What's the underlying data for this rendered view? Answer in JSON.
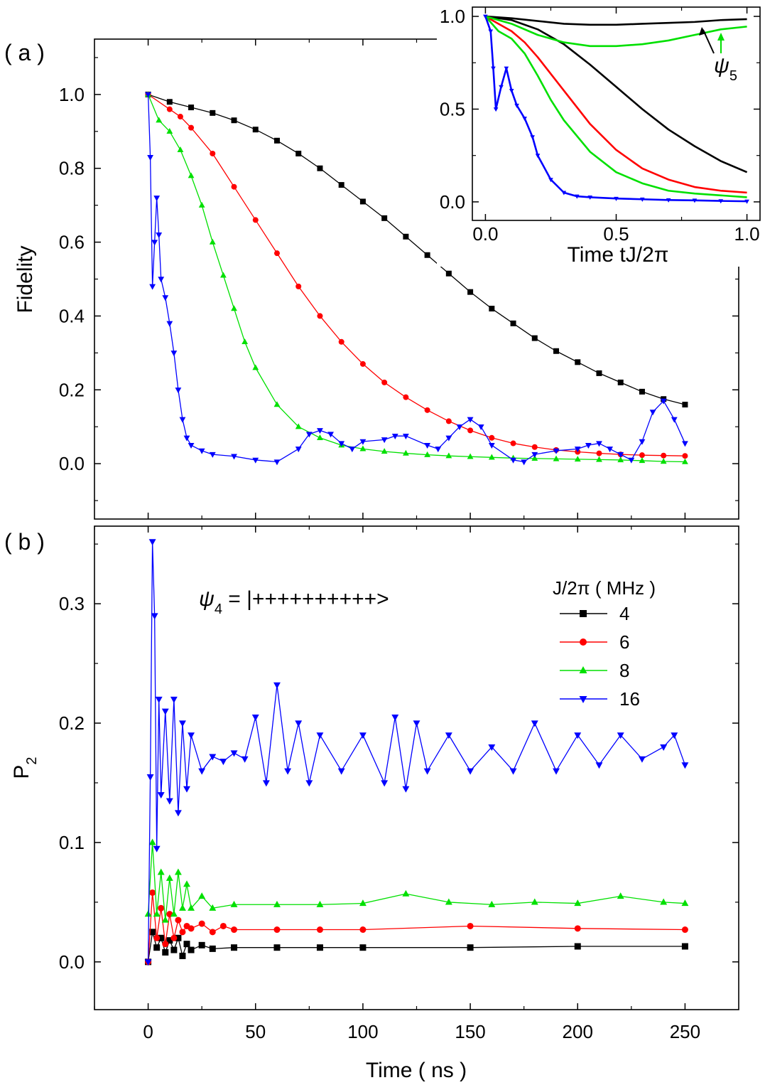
{
  "chart_data": [
    {
      "id": "a",
      "panel_label": "( a )",
      "type": "line",
      "xlabel": "",
      "ylabel": "Fidelity",
      "xlim": [
        -25,
        275
      ],
      "ylim": [
        -0.15,
        1.15
      ],
      "yticks": [
        "0.0",
        "0.2",
        "0.4",
        "0.6",
        "0.8",
        "1.0"
      ],
      "series": [
        {
          "name": "4",
          "color": "#000000",
          "marker": "square",
          "x": [
            0,
            10,
            20,
            30,
            40,
            50,
            60,
            70,
            80,
            90,
            100,
            110,
            120,
            130,
            140,
            150,
            160,
            170,
            180,
            190,
            200,
            210,
            220,
            230,
            240,
            250
          ],
          "values": [
            1.0,
            0.98,
            0.965,
            0.95,
            0.93,
            0.905,
            0.875,
            0.84,
            0.8,
            0.755,
            0.71,
            0.665,
            0.615,
            0.565,
            0.515,
            0.465,
            0.42,
            0.38,
            0.34,
            0.305,
            0.275,
            0.245,
            0.22,
            0.195,
            0.175,
            0.16
          ]
        },
        {
          "name": "6",
          "color": "#ff0000",
          "marker": "circle",
          "x": [
            0,
            10,
            15,
            20,
            30,
            40,
            50,
            60,
            70,
            80,
            90,
            100,
            110,
            120,
            130,
            140,
            150,
            160,
            170,
            180,
            190,
            200,
            210,
            220,
            230,
            240,
            250
          ],
          "values": [
            1.0,
            0.96,
            0.94,
            0.91,
            0.84,
            0.75,
            0.66,
            0.57,
            0.48,
            0.4,
            0.33,
            0.27,
            0.22,
            0.18,
            0.145,
            0.115,
            0.09,
            0.07,
            0.055,
            0.045,
            0.037,
            0.032,
            0.028,
            0.025,
            0.023,
            0.022,
            0.021
          ]
        },
        {
          "name": "8",
          "color": "#00e000",
          "marker": "triangle-up",
          "x": [
            0,
            5,
            10,
            15,
            20,
            25,
            30,
            35,
            40,
            45,
            50,
            60,
            70,
            80,
            90,
            100,
            110,
            120,
            130,
            140,
            150,
            160,
            170,
            180,
            190,
            200,
            210,
            220,
            230,
            240,
            250
          ],
          "values": [
            1.0,
            0.93,
            0.9,
            0.85,
            0.78,
            0.7,
            0.6,
            0.51,
            0.42,
            0.33,
            0.26,
            0.16,
            0.1,
            0.07,
            0.05,
            0.04,
            0.033,
            0.028,
            0.024,
            0.021,
            0.019,
            0.017,
            0.015,
            0.014,
            0.013,
            0.012,
            0.011,
            0.01,
            0.008,
            0.006,
            0.005
          ]
        },
        {
          "name": "16",
          "color": "#0000ff",
          "marker": "triangle-down",
          "x": [
            0,
            1,
            2,
            3,
            4,
            5,
            6,
            8,
            10,
            12,
            14,
            16,
            18,
            20,
            25,
            30,
            40,
            50,
            60,
            70,
            75,
            80,
            85,
            90,
            95,
            100,
            110,
            115,
            120,
            130,
            135,
            140,
            145,
            150,
            155,
            160,
            170,
            175,
            180,
            190,
            200,
            205,
            210,
            215,
            220,
            225,
            230,
            235,
            240,
            245,
            250
          ],
          "values": [
            1.0,
            0.83,
            0.48,
            0.6,
            0.72,
            0.62,
            0.5,
            0.45,
            0.38,
            0.3,
            0.2,
            0.12,
            0.07,
            0.05,
            0.035,
            0.025,
            0.02,
            0.01,
            0.005,
            0.04,
            0.08,
            0.09,
            0.08,
            0.055,
            0.04,
            0.06,
            0.065,
            0.075,
            0.075,
            0.05,
            0.04,
            0.07,
            0.1,
            0.12,
            0.1,
            0.05,
            0.01,
            0.005,
            0.025,
            0.035,
            0.04,
            0.05,
            0.055,
            0.04,
            0.025,
            0.01,
            0.06,
            0.14,
            0.17,
            0.12,
            0.055
          ]
        }
      ],
      "inset": {
        "xlabel": "Time tJ/2π",
        "xlim": [
          -0.05,
          1.05
        ],
        "ylim": [
          -0.1,
          1.05
        ],
        "xticks": [
          "0.0",
          "0.5",
          "1.0"
        ],
        "yticks": [
          "0.0",
          "0.5",
          "1.0"
        ],
        "annotation": "ψ",
        "annotation_sub": "5",
        "series": [
          {
            "name": "4",
            "color": "#000000",
            "x": [
              0,
              0.1,
              0.2,
              0.3,
              0.4,
              0.5,
              0.6,
              0.7,
              0.8,
              0.9,
              1.0
            ],
            "values": [
              1.0,
              0.98,
              0.93,
              0.85,
              0.74,
              0.62,
              0.5,
              0.39,
              0.3,
              0.22,
              0.16
            ]
          },
          {
            "name": "6",
            "color": "#ff0000",
            "x": [
              0,
              0.05,
              0.1,
              0.15,
              0.2,
              0.3,
              0.4,
              0.5,
              0.6,
              0.7,
              0.8,
              0.9,
              1.0
            ],
            "values": [
              1.0,
              0.96,
              0.92,
              0.86,
              0.78,
              0.6,
              0.42,
              0.28,
              0.18,
              0.12,
              0.08,
              0.06,
              0.05
            ]
          },
          {
            "name": "8",
            "color": "#00e000",
            "x": [
              0,
              0.05,
              0.1,
              0.15,
              0.2,
              0.25,
              0.3,
              0.4,
              0.5,
              0.6,
              0.7,
              0.8,
              0.9,
              1.0
            ],
            "values": [
              1.0,
              0.92,
              0.88,
              0.8,
              0.68,
              0.55,
              0.44,
              0.27,
              0.16,
              0.1,
              0.06,
              0.045,
              0.035,
              0.025
            ]
          },
          {
            "name": "16",
            "color": "#0000ff",
            "x": [
              0,
              0.02,
              0.03,
              0.04,
              0.06,
              0.08,
              0.1,
              0.12,
              0.15,
              0.18,
              0.2,
              0.25,
              0.3,
              0.35,
              0.4,
              0.5,
              0.6,
              0.7,
              0.8,
              0.9,
              1.0
            ],
            "values": [
              1.0,
              0.92,
              0.72,
              0.5,
              0.62,
              0.72,
              0.6,
              0.52,
              0.45,
              0.35,
              0.25,
              0.12,
              0.05,
              0.03,
              0.025,
              0.018,
              0.014,
              0.01,
              0.008,
              0.005,
              0.003
            ]
          },
          {
            "name": "4 (ψ₅)",
            "color": "#000000",
            "x": [
              0,
              0.1,
              0.2,
              0.3,
              0.4,
              0.5,
              0.6,
              0.7,
              0.8,
              0.9,
              1.0
            ],
            "values": [
              1.0,
              0.99,
              0.975,
              0.96,
              0.955,
              0.955,
              0.96,
              0.965,
              0.97,
              0.98,
              0.985
            ]
          },
          {
            "name": "8 (ψ₅)",
            "color": "#00e000",
            "x": [
              0,
              0.1,
              0.2,
              0.3,
              0.4,
              0.5,
              0.6,
              0.7,
              0.8,
              0.9,
              1.0
            ],
            "values": [
              1.0,
              0.96,
              0.9,
              0.86,
              0.84,
              0.84,
              0.85,
              0.87,
              0.9,
              0.93,
              0.945
            ]
          }
        ]
      }
    },
    {
      "id": "b",
      "panel_label": "( b )",
      "type": "line",
      "xlabel": "Time ( ns )",
      "ylabel": "P",
      "ylabel_sub": "2",
      "xlim": [
        -25,
        275
      ],
      "ylim": [
        -0.04,
        0.365
      ],
      "xticks": [
        "0",
        "50",
        "100",
        "150",
        "200",
        "250"
      ],
      "yticks": [
        "0.0",
        "0.1",
        "0.2",
        "0.3"
      ],
      "annotation": "ψ",
      "annotation_sub": "4",
      "annotation_rest": " = |++++++++++>",
      "legend_title": "J/2π ( MHz )",
      "series": [
        {
          "name": "4",
          "color": "#000000",
          "marker": "square",
          "x": [
            0,
            2,
            4,
            6,
            8,
            10,
            12,
            14,
            16,
            18,
            20,
            25,
            30,
            40,
            60,
            80,
            100,
            150,
            200,
            250
          ],
          "values": [
            0.0,
            0.025,
            0.012,
            0.02,
            0.008,
            0.018,
            0.01,
            0.02,
            0.005,
            0.015,
            0.01,
            0.014,
            0.011,
            0.012,
            0.012,
            0.012,
            0.012,
            0.012,
            0.013,
            0.013
          ]
        },
        {
          "name": "6",
          "color": "#ff0000",
          "marker": "circle",
          "x": [
            0,
            2,
            4,
            6,
            8,
            10,
            12,
            14,
            16,
            18,
            20,
            25,
            30,
            35,
            40,
            60,
            80,
            100,
            150,
            200,
            250
          ],
          "values": [
            0.0,
            0.058,
            0.02,
            0.045,
            0.015,
            0.04,
            0.02,
            0.035,
            0.025,
            0.03,
            0.028,
            0.032,
            0.025,
            0.03,
            0.027,
            0.027,
            0.027,
            0.027,
            0.03,
            0.028,
            0.027
          ]
        },
        {
          "name": "8",
          "color": "#00e000",
          "marker": "triangle-up",
          "x": [
            0,
            2,
            4,
            6,
            8,
            10,
            12,
            14,
            16,
            18,
            20,
            25,
            30,
            40,
            60,
            80,
            100,
            120,
            140,
            160,
            180,
            200,
            220,
            240,
            250
          ],
          "values": [
            0.04,
            0.1,
            0.04,
            0.075,
            0.035,
            0.07,
            0.04,
            0.075,
            0.045,
            0.065,
            0.045,
            0.055,
            0.045,
            0.048,
            0.048,
            0.048,
            0.049,
            0.057,
            0.05,
            0.048,
            0.05,
            0.049,
            0.055,
            0.05,
            0.049
          ]
        },
        {
          "name": "16",
          "color": "#0000ff",
          "marker": "triangle-down",
          "x": [
            0,
            1,
            2,
            3,
            4,
            5,
            6,
            8,
            10,
            12,
            14,
            16,
            18,
            20,
            25,
            30,
            35,
            40,
            45,
            50,
            55,
            60,
            65,
            70,
            75,
            80,
            90,
            100,
            110,
            115,
            120,
            125,
            130,
            140,
            150,
            160,
            170,
            180,
            190,
            200,
            210,
            220,
            230,
            240,
            245,
            250
          ],
          "values": [
            0.0,
            0.155,
            0.352,
            0.29,
            0.095,
            0.22,
            0.14,
            0.21,
            0.135,
            0.22,
            0.125,
            0.2,
            0.145,
            0.19,
            0.16,
            0.172,
            0.168,
            0.175,
            0.17,
            0.205,
            0.15,
            0.232,
            0.16,
            0.2,
            0.15,
            0.19,
            0.16,
            0.19,
            0.15,
            0.205,
            0.145,
            0.2,
            0.16,
            0.19,
            0.16,
            0.18,
            0.16,
            0.2,
            0.16,
            0.19,
            0.165,
            0.19,
            0.17,
            0.18,
            0.19,
            0.165
          ]
        }
      ]
    }
  ]
}
